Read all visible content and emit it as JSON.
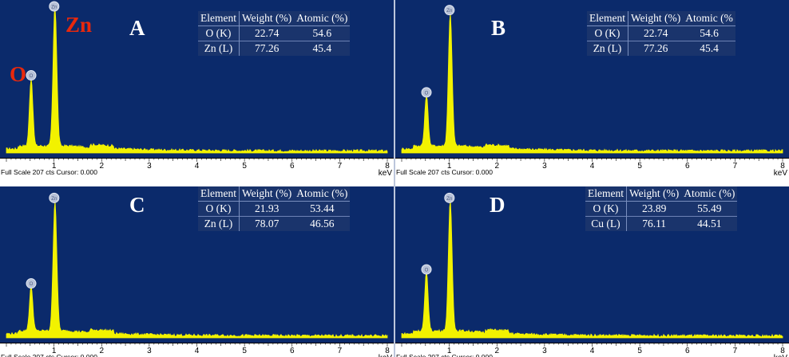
{
  "chart_data": [
    {
      "type": "line",
      "panel": "A",
      "xlabel": "keV",
      "xlim": [
        0,
        8
      ],
      "x_ticks": [
        "1",
        "2",
        "3",
        "4",
        "5",
        "6",
        "7",
        "8"
      ],
      "status": "Full Scale 207 cts Cursor: 0.000",
      "peaks": [
        {
          "label": "O",
          "x": 0.52,
          "height": 0.48
        },
        {
          "label": "Zn",
          "x": 1.02,
          "height": 1.0
        }
      ],
      "element_labels": [
        "Zn",
        "O"
      ],
      "table": {
        "headers": [
          "Element",
          "Weight (%)",
          "Atomic (%)"
        ],
        "rows": [
          [
            "O (K)",
            "22.74",
            "54.6"
          ],
          [
            "Zn (L)",
            "77.26",
            "45.4"
          ]
        ]
      }
    },
    {
      "type": "line",
      "panel": "B",
      "xlabel": "keV",
      "xlim": [
        0,
        8
      ],
      "x_ticks": [
        "1",
        "2",
        "3",
        "4",
        "5",
        "6",
        "7",
        "8"
      ],
      "status": "Full Scale 207 cts Cursor: 0.000",
      "peaks": [
        {
          "label": "O",
          "x": 0.52,
          "height": 0.36
        },
        {
          "label": "Zn",
          "x": 1.02,
          "height": 0.94
        }
      ],
      "element_labels": [],
      "table": {
        "headers": [
          "Element",
          "Weight (%)",
          "Atomic (%"
        ],
        "rows": [
          [
            "O (K)",
            "22.74",
            "54.6"
          ],
          [
            "Zn (L)",
            "77.26",
            "45.4"
          ]
        ]
      }
    },
    {
      "type": "line",
      "panel": "C",
      "xlabel": "keV",
      "xlim": [
        0,
        8
      ],
      "x_ticks": [
        "1",
        "2",
        "3",
        "4",
        "5",
        "6",
        "7",
        "8"
      ],
      "status": "Full Scale 207 cts Cursor: 0.000",
      "peaks": [
        {
          "label": "O",
          "x": 0.52,
          "height": 0.32
        },
        {
          "label": "Zn",
          "x": 1.02,
          "height": 0.93
        }
      ],
      "element_labels": [],
      "table": {
        "headers": [
          "Element",
          "Weight (%)",
          "Atomic (%)"
        ],
        "rows": [
          [
            "O (K)",
            "21.93",
            "53.44"
          ],
          [
            "Zn (L)",
            "78.07",
            "46.56"
          ]
        ]
      }
    },
    {
      "type": "line",
      "panel": "D",
      "xlabel": "keV",
      "xlim": [
        0,
        8
      ],
      "x_ticks": [
        "1",
        "2",
        "3",
        "4",
        "5",
        "6",
        "7",
        "8"
      ],
      "status": "Full Scale 207 cts Cursor: 0.000",
      "peaks": [
        {
          "label": "O",
          "x": 0.52,
          "height": 0.42
        },
        {
          "label": "Zn",
          "x": 1.02,
          "height": 0.93
        }
      ],
      "element_labels": [],
      "table": {
        "headers": [
          "Element",
          "Weight (%)",
          "Atomic (%)"
        ],
        "rows": [
          [
            "O (K)",
            "23.89",
            "55.49"
          ],
          [
            "Cu (L)",
            "76.11",
            "44.51"
          ]
        ]
      }
    }
  ],
  "colors": {
    "plot_bg": "#0b2a6b",
    "spectrum": "#f2f200",
    "label_red": "#e8280c"
  }
}
